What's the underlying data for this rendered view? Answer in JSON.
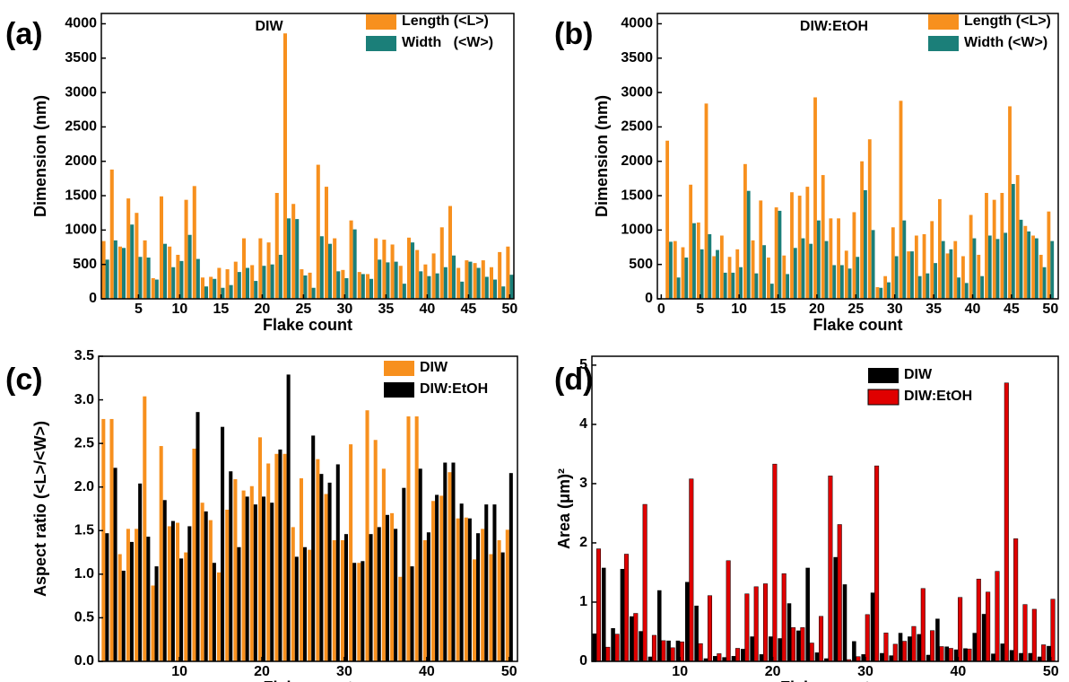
{
  "chart_data": [
    {
      "type": "bar",
      "panel_label": "(a)",
      "annotation": "DIW",
      "xlabel": "Flake count",
      "ylabel": "Dimension (nm)",
      "x": [
        1,
        2,
        3,
        4,
        5,
        6,
        7,
        8,
        9,
        10,
        11,
        12,
        13,
        14,
        15,
        16,
        17,
        18,
        19,
        20,
        21,
        22,
        23,
        24,
        25,
        26,
        27,
        28,
        29,
        30,
        31,
        32,
        33,
        34,
        35,
        36,
        37,
        38,
        39,
        40,
        41,
        42,
        43,
        44,
        45,
        46,
        47,
        48,
        49,
        50
      ],
      "xlim": [
        0.5,
        50.5
      ],
      "xticks": [
        5,
        10,
        15,
        20,
        25,
        30,
        35,
        40,
        45,
        50
      ],
      "ylim": [
        0,
        4150
      ],
      "yticks": [
        0,
        500,
        1000,
        1500,
        2000,
        2500,
        3000,
        3500,
        4000
      ],
      "legend": "upper right",
      "series": [
        {
          "name": "Length (<L>)",
          "color": "#f7901e",
          "values": [
            840,
            1880,
            760,
            1460,
            1250,
            850,
            300,
            1490,
            760,
            640,
            1440,
            1640,
            310,
            320,
            450,
            430,
            540,
            880,
            490,
            880,
            820,
            1540,
            3860,
            1380,
            430,
            380,
            1950,
            1630,
            880,
            420,
            1140,
            390,
            360,
            880,
            860,
            790,
            480,
            890,
            710,
            500,
            660,
            1040,
            1350,
            450,
            560,
            520,
            560,
            460,
            680,
            760
          ]
        },
        {
          "name": "Width   (<W>)",
          "color": "#1b7f79",
          "values": [
            570,
            850,
            740,
            1080,
            610,
            600,
            280,
            800,
            460,
            550,
            930,
            580,
            180,
            290,
            160,
            200,
            390,
            450,
            260,
            480,
            500,
            640,
            1170,
            1160,
            340,
            160,
            910,
            800,
            400,
            300,
            1010,
            360,
            290,
            570,
            530,
            540,
            220,
            820,
            400,
            330,
            370,
            460,
            630,
            250,
            540,
            450,
            320,
            280,
            180,
            350
          ]
        }
      ]
    },
    {
      "type": "bar",
      "panel_label": "(b)",
      "annotation": "DIW:EtOH",
      "xlabel": "Flake count",
      "ylabel": "Dimension (nm)",
      "x": [
        1,
        2,
        3,
        4,
        5,
        6,
        7,
        8,
        9,
        10,
        11,
        12,
        13,
        14,
        15,
        16,
        17,
        18,
        19,
        20,
        21,
        22,
        23,
        24,
        25,
        26,
        27,
        28,
        29,
        30,
        31,
        32,
        33,
        34,
        35,
        36,
        37,
        38,
        39,
        40,
        41,
        42,
        43,
        44,
        45,
        46,
        47,
        48,
        49,
        50
      ],
      "xlim": [
        -0.5,
        51
      ],
      "xticks": [
        0,
        5,
        10,
        15,
        20,
        25,
        30,
        35,
        40,
        45,
        50
      ],
      "ylim": [
        0,
        4150
      ],
      "yticks": [
        0,
        500,
        1000,
        1500,
        2000,
        2500,
        3000,
        3500,
        4000
      ],
      "legend": "upper right",
      "series": [
        {
          "name": "Length (<L>)",
          "color": "#f7901e",
          "values": [
            2300,
            840,
            750,
            1660,
            1110,
            2840,
            620,
            920,
            610,
            720,
            1960,
            850,
            1430,
            600,
            1330,
            630,
            1550,
            1500,
            1630,
            2930,
            1800,
            1170,
            1170,
            700,
            1260,
            2000,
            2320,
            170,
            330,
            1040,
            2880,
            690,
            920,
            940,
            1130,
            1450,
            660,
            840,
            620,
            1220,
            640,
            1540,
            1440,
            1540,
            2800,
            1800,
            1060,
            920,
            640,
            1270
          ]
        },
        {
          "name": "Width (<W>)",
          "color": "#1b7f79",
          "values": [
            830,
            310,
            600,
            1100,
            720,
            940,
            710,
            380,
            380,
            460,
            1570,
            370,
            780,
            220,
            1280,
            360,
            740,
            880,
            800,
            1140,
            840,
            490,
            490,
            440,
            610,
            1580,
            1000,
            160,
            240,
            620,
            1140,
            690,
            330,
            370,
            520,
            840,
            720,
            310,
            230,
            880,
            330,
            920,
            870,
            960,
            1670,
            1150,
            980,
            880,
            460,
            840
          ]
        }
      ]
    },
    {
      "type": "bar",
      "panel_label": "(c)",
      "xlabel": "Flake count",
      "ylabel": "Aspect ratio (<L>/<W>)",
      "x": [
        1,
        2,
        3,
        4,
        5,
        6,
        7,
        8,
        9,
        10,
        11,
        12,
        13,
        14,
        15,
        16,
        17,
        18,
        19,
        20,
        21,
        22,
        23,
        24,
        25,
        26,
        27,
        28,
        29,
        30,
        31,
        32,
        33,
        34,
        35,
        36,
        37,
        38,
        39,
        40,
        41,
        42,
        43,
        44,
        45,
        46,
        47,
        48,
        49,
        50
      ],
      "xlim": [
        0.2,
        51
      ],
      "xticks": [
        10,
        20,
        30,
        40,
        50
      ],
      "ylim": [
        0,
        3.5
      ],
      "yticks": [
        {
          "value": 0,
          "label": "0.0"
        },
        0.5,
        {
          "value": 1,
          "label": "1.0"
        },
        1.5,
        {
          "value": 2,
          "label": "2.0"
        },
        2.5,
        {
          "value": 3,
          "label": "3.0"
        },
        3.5
      ],
      "legend": "upper right",
      "series": [
        {
          "name": "DIW",
          "color": "#f7901e",
          "values": [
            2.78,
            2.78,
            1.23,
            1.52,
            1.52,
            3.04,
            0.87,
            2.47,
            1.55,
            1.59,
            1.25,
            2.44,
            1.82,
            1.62,
            1.02,
            1.74,
            2.09,
            1.96,
            2.01,
            2.57,
            2.27,
            2.38,
            2.38,
            1.54,
            2.1,
            1.28,
            2.32,
            1.92,
            1.39,
            1.39,
            2.49,
            1.13,
            2.88,
            2.54,
            2.21,
            1.7,
            0.97,
            2.81,
            2.81,
            1.39,
            1.84,
            1.9,
            2.17,
            1.64,
            1.65,
            1.17,
            1.52,
            1.23,
            1.39,
            1.51
          ]
        },
        {
          "name": "DIW:EtOH",
          "color": "#000000",
          "values": [
            1.47,
            2.22,
            1.04,
            1.37,
            2.04,
            1.43,
            1.09,
            1.85,
            1.61,
            1.18,
            1.55,
            2.86,
            1.72,
            1.13,
            2.69,
            2.18,
            1.31,
            1.89,
            1.8,
            1.89,
            1.82,
            2.43,
            3.29,
            1.2,
            1.31,
            2.59,
            2.15,
            2.05,
            2.26,
            1.46,
            1.13,
            1.15,
            1.46,
            1.54,
            1.68,
            1.52,
            1.99,
            1.09,
            2.21,
            1.48,
            1.91,
            2.28,
            2.28,
            1.81,
            1.64,
            1.47,
            1.8,
            1.8,
            1.25,
            2.16
          ]
        }
      ]
    },
    {
      "type": "bar",
      "panel_label": "(d)",
      "xlabel": "Flake count",
      "ylabel": "Area (μm)²",
      "x": [
        1,
        2,
        3,
        4,
        5,
        6,
        7,
        8,
        9,
        10,
        11,
        12,
        13,
        14,
        15,
        16,
        17,
        18,
        19,
        20,
        21,
        22,
        23,
        24,
        25,
        26,
        27,
        28,
        29,
        30,
        31,
        32,
        33,
        34,
        35,
        36,
        37,
        38,
        39,
        40,
        41,
        42,
        43,
        44,
        45,
        46,
        47,
        48,
        49,
        50
      ],
      "xlim": [
        0.5,
        50.8
      ],
      "xticks": [
        10,
        20,
        30,
        40,
        50
      ],
      "ylim": [
        0,
        5.15
      ],
      "yticks": [
        0,
        1,
        2,
        3,
        4,
        5
      ],
      "legend": "upper center",
      "series": [
        {
          "name": "DIW",
          "color": "#000000",
          "values": [
            0.47,
            1.58,
            0.56,
            1.56,
            0.76,
            0.51,
            0.08,
            1.2,
            0.35,
            0.35,
            1.34,
            0.94,
            0.05,
            0.09,
            0.07,
            0.09,
            0.21,
            0.42,
            0.12,
            0.42,
            0.39,
            0.98,
            0.52,
            1.58,
            0.15,
            0.05,
            1.76,
            1.3,
            0.34,
            0.12,
            1.16,
            0.14,
            0.1,
            0.48,
            0.42,
            0.46,
            0.11,
            0.72,
            0.25,
            0.2,
            0.22,
            0.48,
            0.8,
            0.13,
            0.3,
            0.19,
            0.14,
            0.14,
            0.08,
            0.26
          ]
        },
        {
          "name": "DIW:EtOH",
          "color": "#e00000",
          "values": [
            1.9,
            0.24,
            0.46,
            1.81,
            0.81,
            2.65,
            0.44,
            0.35,
            0.23,
            0.33,
            3.08,
            0.3,
            1.11,
            0.13,
            1.7,
            0.22,
            1.14,
            1.26,
            1.31,
            3.33,
            1.48,
            0.57,
            0.57,
            0.31,
            0.76,
            3.13,
            2.31,
            0.03,
            0.08,
            0.79,
            3.3,
            0.48,
            0.29,
            0.34,
            0.59,
            1.23,
            0.52,
            0.25,
            0.22,
            1.08,
            0.21,
            1.39,
            1.17,
            1.52,
            4.7,
            2.07,
            0.96,
            0.88,
            0.28,
            1.05
          ]
        }
      ]
    }
  ]
}
